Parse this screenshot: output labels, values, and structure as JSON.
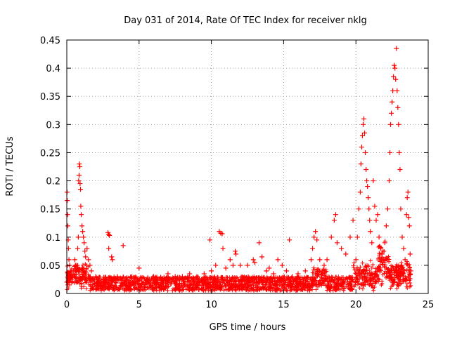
{
  "chart_data": {
    "type": "scatter",
    "title": "Day 031 of 2014, Rate Of TEC Index for receiver nklg",
    "xlabel": "GPS time / hours",
    "ylabel": "ROTI / TECUs",
    "xlim": [
      0,
      25
    ],
    "ylim": [
      0,
      0.45
    ],
    "x_ticks": [
      "0",
      "5",
      "10",
      "15",
      "20",
      "25"
    ],
    "x_tick_values": [
      0,
      5,
      10,
      15,
      20,
      25
    ],
    "y_ticks": [
      "0",
      "0.05",
      "0.1",
      "0.15",
      "0.2",
      "0.25",
      "0.3",
      "0.35",
      "0.4",
      "0.45"
    ],
    "y_tick_values": [
      0,
      0.05,
      0.1,
      0.15,
      0.2,
      0.25,
      0.3,
      0.35,
      0.4,
      0.45
    ],
    "grid": true,
    "grid_style": "dotted",
    "marker": "+",
    "marker_color": "#ff0000",
    "series": [
      {
        "values": [
          [
            0.0,
            0.02
          ],
          [
            0.02,
            0.18
          ],
          [
            0.03,
            0.165
          ],
          [
            0.05,
            0.14
          ],
          [
            0.07,
            0.12
          ],
          [
            0.1,
            0.095
          ],
          [
            0.12,
            0.08
          ],
          [
            0.15,
            0.06
          ],
          [
            0.2,
            0.05
          ],
          [
            0.25,
            0.04
          ],
          [
            0.3,
            0.035
          ],
          [
            0.35,
            0.03
          ],
          [
            0.45,
            0.04
          ],
          [
            0.55,
            0.06
          ],
          [
            0.6,
            0.05
          ],
          [
            0.7,
            0.05
          ],
          [
            0.75,
            0.08
          ],
          [
            0.8,
            0.1
          ],
          [
            0.82,
            0.2
          ],
          [
            0.85,
            0.21
          ],
          [
            0.87,
            0.23
          ],
          [
            0.9,
            0.225
          ],
          [
            0.92,
            0.195
          ],
          [
            0.95,
            0.185
          ],
          [
            0.97,
            0.155
          ],
          [
            1.0,
            0.14
          ],
          [
            1.05,
            0.12
          ],
          [
            1.1,
            0.11
          ],
          [
            1.15,
            0.1
          ],
          [
            1.2,
            0.09
          ],
          [
            1.25,
            0.075
          ],
          [
            1.3,
            0.065
          ],
          [
            1.4,
            0.08
          ],
          [
            1.5,
            0.06
          ],
          [
            1.6,
            0.05
          ],
          [
            1.7,
            0.04
          ],
          [
            2.0,
            0.03
          ],
          [
            2.5,
            0.025
          ],
          [
            2.85,
            0.108
          ],
          [
            2.9,
            0.105
          ],
          [
            2.95,
            0.103
          ],
          [
            2.9,
            0.08
          ],
          [
            3.1,
            0.065
          ],
          [
            3.15,
            0.06
          ],
          [
            3.5,
            0.03
          ],
          [
            3.9,
            0.085
          ],
          [
            4.0,
            0.02
          ],
          [
            4.5,
            0.03
          ],
          [
            5.0,
            0.045
          ],
          [
            5.5,
            0.025
          ],
          [
            6.0,
            0.03
          ],
          [
            6.5,
            0.025
          ],
          [
            7.0,
            0.035
          ],
          [
            7.5,
            0.03
          ],
          [
            8.0,
            0.03
          ],
          [
            8.5,
            0.035
          ],
          [
            9.0,
            0.03
          ],
          [
            9.5,
            0.035
          ],
          [
            9.9,
            0.095
          ],
          [
            10.0,
            0.04
          ],
          [
            10.3,
            0.05
          ],
          [
            10.55,
            0.11
          ],
          [
            10.65,
            0.107
          ],
          [
            10.75,
            0.106
          ],
          [
            10.8,
            0.08
          ],
          [
            11.0,
            0.045
          ],
          [
            11.3,
            0.06
          ],
          [
            11.5,
            0.05
          ],
          [
            11.65,
            0.075
          ],
          [
            11.7,
            0.07
          ],
          [
            12.0,
            0.05
          ],
          [
            12.5,
            0.05
          ],
          [
            12.9,
            0.06
          ],
          [
            13.0,
            0.055
          ],
          [
            13.3,
            0.09
          ],
          [
            13.5,
            0.065
          ],
          [
            13.8,
            0.04
          ],
          [
            14.0,
            0.045
          ],
          [
            14.3,
            0.035
          ],
          [
            14.6,
            0.06
          ],
          [
            14.9,
            0.05
          ],
          [
            15.2,
            0.04
          ],
          [
            15.4,
            0.095
          ],
          [
            15.6,
            0.03
          ],
          [
            16.0,
            0.035
          ],
          [
            16.5,
            0.04
          ],
          [
            16.9,
            0.06
          ],
          [
            17.0,
            0.08
          ],
          [
            17.1,
            0.1
          ],
          [
            17.2,
            0.11
          ],
          [
            17.3,
            0.095
          ],
          [
            17.5,
            0.06
          ],
          [
            17.8,
            0.05
          ],
          [
            18.0,
            0.06
          ],
          [
            18.3,
            0.1
          ],
          [
            18.5,
            0.13
          ],
          [
            18.6,
            0.14
          ],
          [
            18.7,
            0.09
          ],
          [
            19.0,
            0.08
          ],
          [
            19.3,
            0.07
          ],
          [
            19.6,
            0.1
          ],
          [
            19.8,
            0.13
          ],
          [
            20.0,
            0.06
          ],
          [
            20.1,
            0.1
          ],
          [
            20.2,
            0.15
          ],
          [
            20.3,
            0.18
          ],
          [
            20.35,
            0.23
          ],
          [
            20.4,
            0.26
          ],
          [
            20.45,
            0.28
          ],
          [
            20.5,
            0.3
          ],
          [
            20.55,
            0.31
          ],
          [
            20.6,
            0.285
          ],
          [
            20.65,
            0.25
          ],
          [
            20.7,
            0.22
          ],
          [
            20.75,
            0.2
          ],
          [
            20.8,
            0.19
          ],
          [
            20.85,
            0.17
          ],
          [
            20.9,
            0.15
          ],
          [
            20.95,
            0.13
          ],
          [
            21.0,
            0.11
          ],
          [
            21.1,
            0.09
          ],
          [
            21.2,
            0.2
          ],
          [
            21.3,
            0.155
          ],
          [
            21.4,
            0.13
          ],
          [
            21.5,
            0.14
          ],
          [
            21.6,
            0.1
          ],
          [
            21.7,
            0.08
          ],
          [
            21.8,
            0.07
          ],
          [
            21.9,
            0.06
          ],
          [
            22.0,
            0.09
          ],
          [
            22.1,
            0.12
          ],
          [
            22.2,
            0.15
          ],
          [
            22.3,
            0.2
          ],
          [
            22.35,
            0.25
          ],
          [
            22.4,
            0.3
          ],
          [
            22.45,
            0.32
          ],
          [
            22.5,
            0.34
          ],
          [
            22.55,
            0.36
          ],
          [
            22.6,
            0.385
          ],
          [
            22.65,
            0.405
          ],
          [
            22.7,
            0.4
          ],
          [
            22.75,
            0.38
          ],
          [
            22.8,
            0.435
          ],
          [
            22.85,
            0.36
          ],
          [
            22.9,
            0.33
          ],
          [
            22.95,
            0.3
          ],
          [
            23.0,
            0.25
          ],
          [
            23.05,
            0.22
          ],
          [
            23.1,
            0.15
          ],
          [
            23.2,
            0.1
          ],
          [
            23.3,
            0.08
          ],
          [
            23.4,
            0.06
          ],
          [
            23.5,
            0.14
          ],
          [
            23.55,
            0.17
          ],
          [
            23.6,
            0.18
          ],
          [
            23.65,
            0.135
          ],
          [
            23.7,
            0.12
          ],
          [
            23.75,
            0.07
          ],
          [
            23.8,
            0.04
          ]
        ]
      }
    ]
  }
}
